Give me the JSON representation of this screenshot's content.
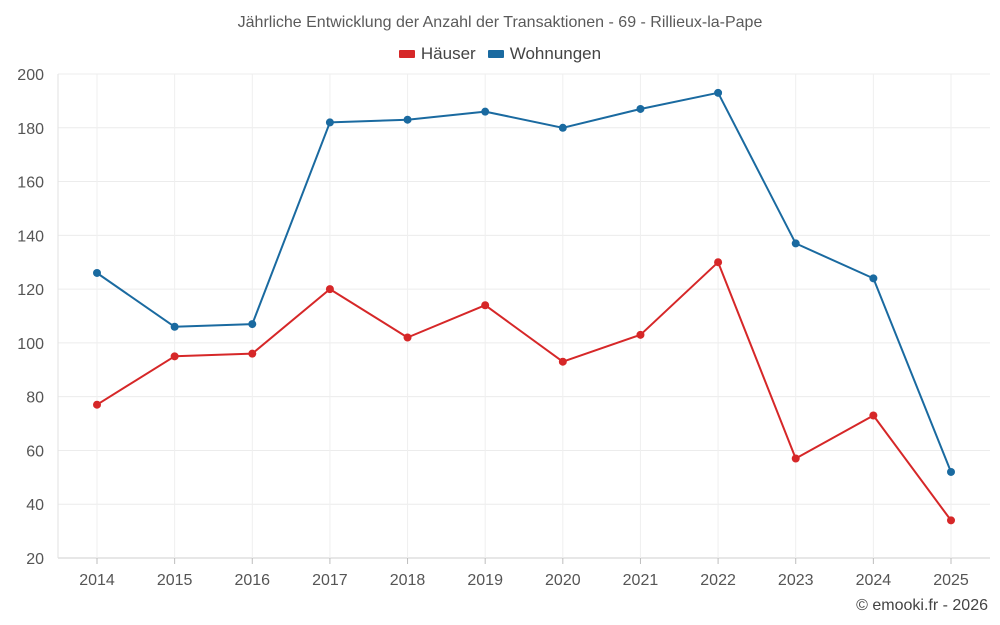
{
  "chart_data": {
    "type": "line",
    "title": "Jährliche Entwicklung der Anzahl der Transaktionen - 69 - Rillieux-la-Pape",
    "categories": [
      "2014",
      "2015",
      "2016",
      "2017",
      "2018",
      "2019",
      "2020",
      "2021",
      "2022",
      "2023",
      "2024",
      "2025"
    ],
    "series": [
      {
        "name": "Häuser",
        "color": "#d62728",
        "values": [
          77,
          95,
          96,
          120,
          102,
          114,
          93,
          103,
          130,
          57,
          73,
          34
        ]
      },
      {
        "name": "Wohnungen",
        "color": "#1a6aa0",
        "values": [
          126,
          106,
          107,
          182,
          183,
          186,
          180,
          187,
          193,
          137,
          124,
          52
        ]
      }
    ],
    "ylim": [
      20,
      200
    ],
    "yticks": [
      20,
      40,
      60,
      80,
      100,
      120,
      140,
      160,
      180,
      200
    ],
    "xlabel": "",
    "ylabel": "",
    "legend_position": "top-center",
    "grid": true
  },
  "footer": {
    "copyright": "© emooki.fr - 2026"
  }
}
